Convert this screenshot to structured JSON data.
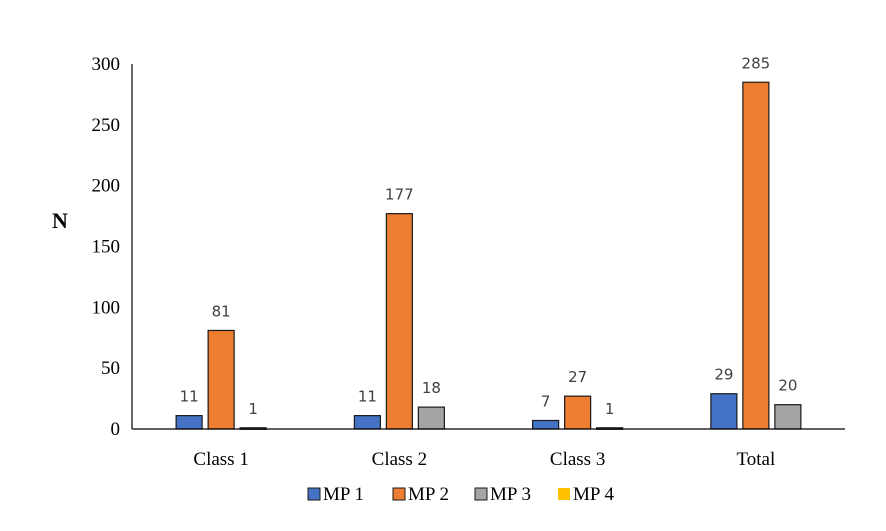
{
  "chart_data": {
    "type": "bar",
    "title": "",
    "xlabel": "",
    "ylabel": "N",
    "ylim": [
      0,
      300
    ],
    "yticks": [
      0,
      50,
      100,
      150,
      200,
      250,
      300
    ],
    "grid": false,
    "legend_position": "bottom",
    "categories": [
      "Class 1",
      "Class 2",
      "Class 3",
      "Total"
    ],
    "series": [
      {
        "name": "MP 1",
        "color": "#4472C4",
        "values": [
          11,
          11,
          7,
          29
        ]
      },
      {
        "name": "MP 2",
        "color": "#ED7D31",
        "values": [
          81,
          177,
          27,
          285
        ]
      },
      {
        "name": "MP 3",
        "color": "#A5A5A5",
        "values": [
          1,
          18,
          1,
          20
        ]
      },
      {
        "name": "MP 4",
        "color": "#FFC000",
        "values": [
          0,
          0,
          0,
          0
        ]
      }
    ],
    "data_labels": [
      [
        "11",
        "11",
        "7",
        "29"
      ],
      [
        "81",
        "177",
        "27",
        "285"
      ],
      [
        "1",
        "18",
        "1",
        "20"
      ],
      [
        "",
        "",
        "",
        ""
      ]
    ]
  }
}
